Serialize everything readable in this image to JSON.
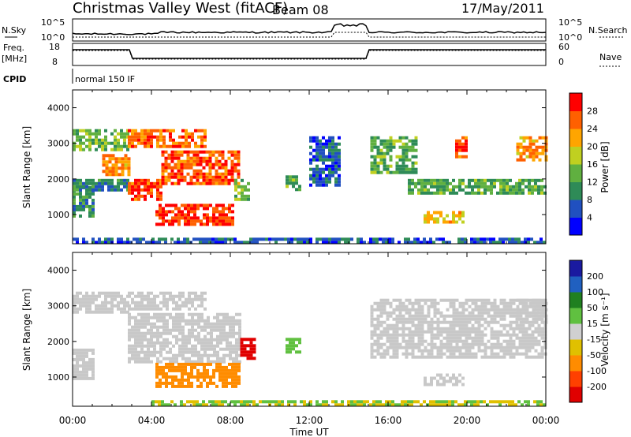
{
  "header": {
    "title": "Christmas Valley West (fitACF)",
    "beam": "Beam 08",
    "date": "17/May/2011"
  },
  "strip_panels": {
    "nsky": {
      "label": "N.Sky",
      "ticks": [
        "10^5",
        "10^0"
      ],
      "right_label": "N.Search",
      "right_ticks": [
        "10^5",
        "10^0"
      ]
    },
    "freq": {
      "label_line1": "Freq.",
      "label_line2": "[MHz]",
      "ticks": [
        "18",
        "8"
      ],
      "right_label": "Nave",
      "right_ticks": [
        "60",
        "0"
      ]
    },
    "cpid": {
      "label": "CPID",
      "mode": "normal 150 IF"
    }
  },
  "time_axis": {
    "xlabel": "Time UT",
    "ticks": [
      "00:00",
      "04:00",
      "08:00",
      "12:00",
      "16:00",
      "20:00",
      "00:00"
    ]
  },
  "colors": {
    "ground_scatter": "#c8c8c8",
    "power_scale": [
      "#0000ff",
      "#2050c0",
      "#2e8b57",
      "#60b040",
      "#c0d020",
      "#ffa500",
      "#ff6000",
      "#ff0000"
    ],
    "velocity_scale": [
      "#1a1aa0",
      "#2060c0",
      "#208020",
      "#60c040",
      "#d0d0d0",
      "#e0c000",
      "#ff8c00",
      "#ff4000",
      "#e00000"
    ]
  },
  "chart_data": [
    {
      "type": "heatmap",
      "name": "power",
      "xlabel": "Time UT",
      "ylabel": "Slant Range [km]",
      "xlim": [
        0,
        24
      ],
      "ylim": [
        180,
        4500
      ],
      "yticks": [
        "1000",
        "2000",
        "3000",
        "4000"
      ],
      "colorbar": {
        "label": "Power [dB]",
        "ticks": [
          "4",
          "8",
          "12",
          "16",
          "20",
          "24",
          "28"
        ],
        "range": [
          0,
          30
        ]
      },
      "regions": [
        {
          "t0": 0.0,
          "t1": 1.0,
          "r0": 1000,
          "r1": 1800,
          "value": 10
        },
        {
          "t0": 0.0,
          "t1": 2.8,
          "r0": 2800,
          "r1": 3400,
          "value": 14
        },
        {
          "t0": 1.5,
          "t1": 2.8,
          "r0": 2100,
          "r1": 2700,
          "value": 22
        },
        {
          "t0": 0.0,
          "t1": 2.8,
          "r0": 1700,
          "r1": 2000,
          "value": 8
        },
        {
          "t0": 2.8,
          "t1": 6.7,
          "r0": 2900,
          "r1": 3400,
          "value": 24
        },
        {
          "t0": 2.8,
          "t1": 4.5,
          "r0": 1400,
          "r1": 2000,
          "value": 26
        },
        {
          "t0": 4.5,
          "t1": 8.5,
          "r0": 1900,
          "r1": 2800,
          "value": 25
        },
        {
          "t0": 4.2,
          "t1": 8.2,
          "r0": 750,
          "r1": 1300,
          "value": 27
        },
        {
          "t0": 8.2,
          "t1": 9.0,
          "r0": 1400,
          "r1": 2000,
          "value": 14
        },
        {
          "t0": 10.8,
          "t1": 11.5,
          "r0": 1700,
          "r1": 2100,
          "value": 12
        },
        {
          "t0": 12.0,
          "t1": 13.5,
          "r0": 1800,
          "r1": 3200,
          "value": 6
        },
        {
          "t0": 15.1,
          "t1": 17.5,
          "r0": 2200,
          "r1": 3200,
          "value": 12
        },
        {
          "t0": 17.0,
          "t1": 24.0,
          "r0": 1600,
          "r1": 2000,
          "value": 12
        },
        {
          "t0": 17.8,
          "t1": 19.8,
          "r0": 800,
          "r1": 1100,
          "value": 20
        },
        {
          "t0": 19.4,
          "t1": 20.0,
          "r0": 2600,
          "r1": 3200,
          "value": 26
        },
        {
          "t0": 22.5,
          "t1": 24.0,
          "r0": 2500,
          "r1": 3200,
          "value": 22
        },
        {
          "t0": 0.0,
          "t1": 24.0,
          "r0": 200,
          "r1": 350,
          "value": 6
        }
      ]
    },
    {
      "type": "heatmap",
      "name": "velocity",
      "xlabel": "Time UT",
      "ylabel": "Slant Range [km]",
      "xlim": [
        0,
        24
      ],
      "ylim": [
        180,
        4500
      ],
      "yticks": [
        "1000",
        "2000",
        "3000",
        "4000"
      ],
      "colorbar": {
        "label": "Velocity [m s⁻¹]",
        "ticks": [
          "200",
          "100",
          "50",
          "15",
          "-15",
          "-50",
          "-100",
          "-200"
        ],
        "range": [
          -250,
          250
        ]
      },
      "regions": [
        {
          "t0": 0.0,
          "t1": 2.8,
          "r0": 2800,
          "r1": 3400,
          "value": 0
        },
        {
          "t0": 0.0,
          "t1": 1.0,
          "r0": 1000,
          "r1": 1800,
          "value": 0
        },
        {
          "t0": 2.8,
          "t1": 6.7,
          "r0": 2900,
          "r1": 3400,
          "value": 0
        },
        {
          "t0": 2.8,
          "t1": 8.5,
          "r0": 1400,
          "r1": 2800,
          "value": 0
        },
        {
          "t0": 4.2,
          "t1": 8.5,
          "r0": 750,
          "r1": 1400,
          "value": -60
        },
        {
          "t0": 8.5,
          "t1": 9.2,
          "r0": 1500,
          "r1": 2100,
          "value": -180
        },
        {
          "t0": 10.8,
          "t1": 11.5,
          "r0": 1700,
          "r1": 2100,
          "value": 40
        },
        {
          "t0": 15.1,
          "t1": 24.0,
          "r0": 1600,
          "r1": 3200,
          "value": 0
        },
        {
          "t0": 17.8,
          "t1": 19.8,
          "r0": 800,
          "r1": 1100,
          "value": 0
        },
        {
          "t0": 22.5,
          "t1": 24.0,
          "r0": 2500,
          "r1": 3200,
          "value": 0
        },
        {
          "t0": 4.0,
          "t1": 24.0,
          "r0": 200,
          "r1": 350,
          "value": 30
        }
      ]
    }
  ]
}
